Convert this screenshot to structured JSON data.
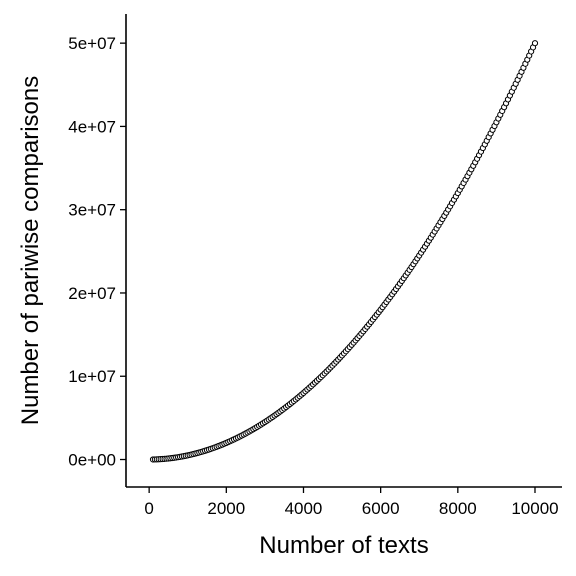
{
  "chart_data": {
    "type": "scatter",
    "xlabel": "Number of texts",
    "ylabel": "Number of pariwise comparisons",
    "xlim": [
      -600,
      10700
    ],
    "ylim": [
      -3300000,
      53500000
    ],
    "x_ticks": [
      0,
      2000,
      4000,
      6000,
      8000,
      10000
    ],
    "x_tick_labels": [
      "0",
      "2000",
      "4000",
      "6000",
      "8000",
      "10000"
    ],
    "y_ticks": [
      0,
      10000000,
      20000000,
      30000000,
      40000000,
      50000000
    ],
    "y_tick_labels": [
      "0e+00",
      "1e+07",
      "2e+07",
      "3e+07",
      "4e+07",
      "5e+07"
    ],
    "grid": false,
    "legend": "none",
    "series": [
      {
        "x_start": 100,
        "x_end": 10000,
        "x_step": 50,
        "relation": "y = x(x-1)/2",
        "point_style": "open-circle",
        "color": "#000000"
      }
    ]
  }
}
